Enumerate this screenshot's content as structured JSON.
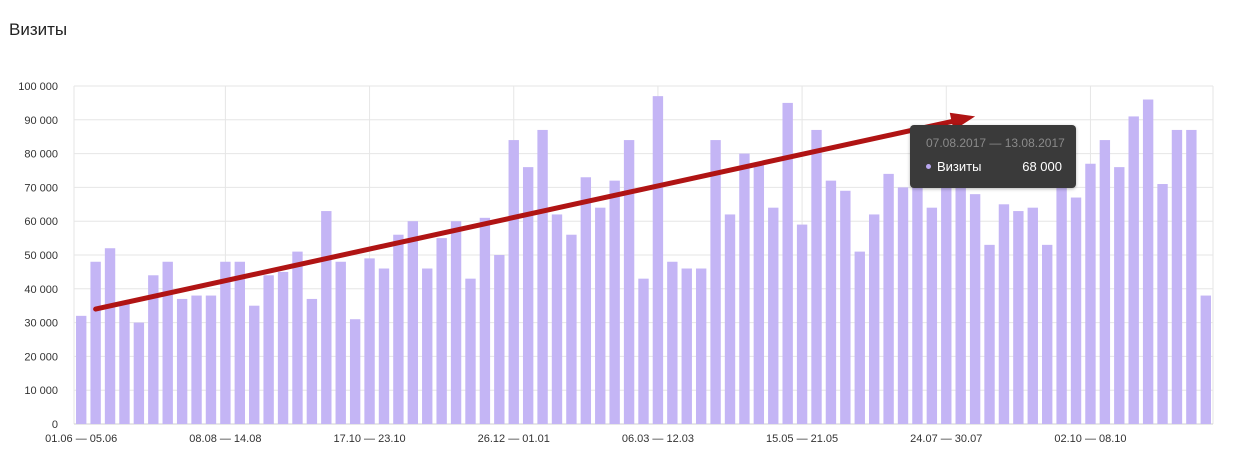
{
  "page": {
    "title": "Визиты"
  },
  "tooltip": {
    "range": "07.08.2017 — 13.08.2017",
    "series_name": "Визиты",
    "value": "68 000"
  },
  "chart_data": {
    "type": "bar",
    "title": "Визиты",
    "xlabel": "",
    "ylabel": "",
    "ylim": [
      0,
      100000
    ],
    "grid": true,
    "bar_color": "#c4b5f5",
    "y_ticks": [
      {
        "value": 0,
        "label": "0"
      },
      {
        "value": 10000,
        "label": "10 000"
      },
      {
        "value": 20000,
        "label": "20 000"
      },
      {
        "value": 30000,
        "label": "30 000"
      },
      {
        "value": 40000,
        "label": "40 000"
      },
      {
        "value": 50000,
        "label": "50 000"
      },
      {
        "value": 60000,
        "label": "60 000"
      },
      {
        "value": 70000,
        "label": "70 000"
      },
      {
        "value": 80000,
        "label": "80 000"
      },
      {
        "value": 90000,
        "label": "90 000"
      },
      {
        "value": 100000,
        "label": "100 000"
      }
    ],
    "x_tick_labels": [
      {
        "index": 0,
        "label": "01.06 — 05.06"
      },
      {
        "index": 10,
        "label": "08.08 — 14.08"
      },
      {
        "index": 20,
        "label": "17.10 — 23.10"
      },
      {
        "index": 30,
        "label": "26.12 — 01.01"
      },
      {
        "index": 40,
        "label": "06.03 — 12.03"
      },
      {
        "index": 50,
        "label": "15.05 — 21.05"
      },
      {
        "index": 60,
        "label": "24.07 — 30.07"
      },
      {
        "index": 70,
        "label": "02.10 — 08.10"
      }
    ],
    "values": [
      32000,
      48000,
      52000,
      36000,
      30000,
      44000,
      48000,
      37000,
      38000,
      38000,
      48000,
      48000,
      35000,
      44000,
      45000,
      51000,
      37000,
      63000,
      48000,
      31000,
      49000,
      46000,
      56000,
      60000,
      46000,
      55000,
      60000,
      43000,
      61000,
      50000,
      84000,
      76000,
      87000,
      62000,
      56000,
      73000,
      64000,
      72000,
      84000,
      43000,
      97000,
      48000,
      46000,
      46000,
      84000,
      62000,
      80000,
      77000,
      64000,
      95000,
      59000,
      87000,
      72000,
      69000,
      51000,
      62000,
      74000,
      70000,
      71000,
      64000,
      70000,
      74000,
      68000,
      53000,
      65000,
      63000,
      64000,
      53000,
      72000,
      67000,
      77000,
      84000,
      76000,
      91000,
      96000,
      71000,
      87000,
      87000,
      38000
    ],
    "trend_arrow": {
      "from": {
        "index": 1,
        "value": 34000
      },
      "to": {
        "index": 62,
        "value": 91000
      },
      "color": "#b01414"
    }
  }
}
